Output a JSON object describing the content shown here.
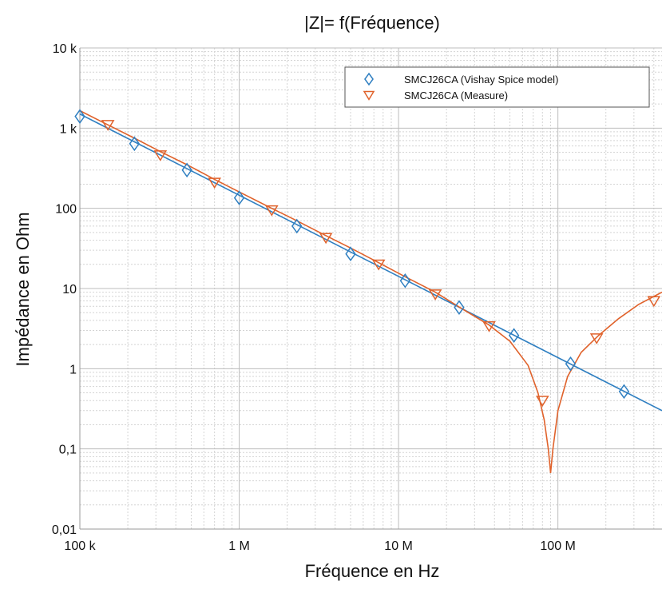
{
  "chart_data": {
    "type": "line",
    "title": "|Z|= f(Fréquence)",
    "xlabel": "Fréquence en Hz",
    "ylabel": "Impédance en Ohm",
    "xscale": "log",
    "yscale": "log",
    "xlim": [
      100000,
      450000000
    ],
    "ylim": [
      0.01,
      10000
    ],
    "grid": true,
    "legend_position": "top-right",
    "x_ticks": [
      {
        "value": 100000,
        "label": "100 k"
      },
      {
        "value": 1000000,
        "label": "1 M"
      },
      {
        "value": 10000000,
        "label": "10 M"
      },
      {
        "value": 100000000,
        "label": "100 M"
      }
    ],
    "y_ticks": [
      {
        "value": 10000,
        "label": "10 k"
      },
      {
        "value": 1000,
        "label": "1 k"
      },
      {
        "value": 100,
        "label": "100"
      },
      {
        "value": 10,
        "label": "10"
      },
      {
        "value": 1,
        "label": "1"
      },
      {
        "value": 0.1,
        "label": "0,1"
      },
      {
        "value": 0.01,
        "label": "0,01"
      }
    ],
    "series": [
      {
        "name": "SMCJ26CA (Vishay Spice model)",
        "color": "#2f7fc1",
        "marker": "diamond",
        "line": [
          [
            100000,
            1500
          ],
          [
            450000000,
            0.3
          ]
        ],
        "markers": [
          [
            100000,
            1400
          ],
          [
            220000,
            640
          ],
          [
            470000,
            300
          ],
          [
            1000000,
            135
          ],
          [
            2300000,
            60
          ],
          [
            5000000,
            27
          ],
          [
            11000000,
            12.5
          ],
          [
            24000000,
            5.8
          ],
          [
            53000000,
            2.6
          ],
          [
            120000000,
            1.15
          ],
          [
            260000000,
            0.52
          ]
        ]
      },
      {
        "name": "SMCJ26CA (Measure)",
        "color": "#e0622b",
        "marker": "triangle-down",
        "line": [
          [
            100000,
            1650
          ],
          [
            150000,
            1100
          ],
          [
            220000,
            750
          ],
          [
            320000,
            510
          ],
          [
            470000,
            350
          ],
          [
            700000,
            230
          ],
          [
            1000000,
            160
          ],
          [
            1600000,
            100
          ],
          [
            2300000,
            70
          ],
          [
            3400000,
            47
          ],
          [
            5000000,
            32
          ],
          [
            7500000,
            21
          ],
          [
            11000000,
            14
          ],
          [
            17000000,
            9
          ],
          [
            25000000,
            5.6
          ],
          [
            37000000,
            3.5
          ],
          [
            50000000,
            2.2
          ],
          [
            65000000,
            1.1
          ],
          [
            75000000,
            0.5
          ],
          [
            82000000,
            0.23
          ],
          [
            87000000,
            0.1
          ],
          [
            90000000,
            0.05
          ],
          [
            93000000,
            0.1
          ],
          [
            100000000,
            0.3
          ],
          [
            115000000,
            0.8
          ],
          [
            140000000,
            1.6
          ],
          [
            180000000,
            2.6
          ],
          [
            240000000,
            4.2
          ],
          [
            320000000,
            6.3
          ],
          [
            450000000,
            9
          ]
        ],
        "markers": [
          [
            150000,
            1100
          ],
          [
            320000,
            460
          ],
          [
            700000,
            210
          ],
          [
            1600000,
            95
          ],
          [
            3500000,
            43
          ],
          [
            7500000,
            20
          ],
          [
            17000000,
            8.5
          ],
          [
            37000000,
            3.4
          ],
          [
            80000000,
            0.4
          ],
          [
            175000000,
            2.4
          ],
          [
            400000000,
            7
          ]
        ]
      }
    ]
  }
}
